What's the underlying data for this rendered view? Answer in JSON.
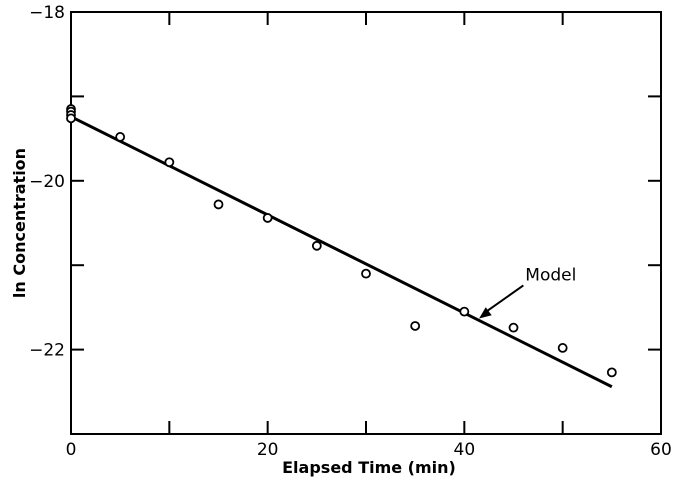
{
  "chart_data": {
    "type": "scatter",
    "xlabel": "Elapsed Time (min)",
    "ylabel": "ln Concentration",
    "xlim": [
      0,
      60
    ],
    "ylim": [
      -23,
      -18
    ],
    "x_ticks": [
      0,
      20,
      40,
      60
    ],
    "x_tick_labels": [
      "0",
      "20",
      "40",
      "60"
    ],
    "x_minor_ticks": [
      10,
      30,
      50
    ],
    "y_ticks": [
      -18,
      -20,
      -22
    ],
    "y_tick_labels": [
      "−18",
      "−20",
      "−22"
    ],
    "y_minor_ticks": [
      -19,
      -21
    ],
    "grid": false,
    "series": [
      {
        "kind": "points",
        "marker": "open-circle",
        "x": [
          0,
          0,
          0,
          0,
          5,
          10,
          15,
          20,
          25,
          30,
          35,
          40,
          45,
          50,
          55
        ],
        "y": [
          -19.15,
          -19.18,
          -19.22,
          -19.26,
          -19.48,
          -19.78,
          -20.28,
          -20.44,
          -20.77,
          -21.1,
          -21.72,
          -21.55,
          -21.74,
          -21.98,
          -22.27
        ]
      },
      {
        "kind": "line",
        "x": [
          0,
          55
        ],
        "y": [
          -19.24,
          -22.44
        ]
      }
    ],
    "annotations": [
      {
        "text": "Model",
        "x": 41.5,
        "y": -21.3
      }
    ]
  }
}
